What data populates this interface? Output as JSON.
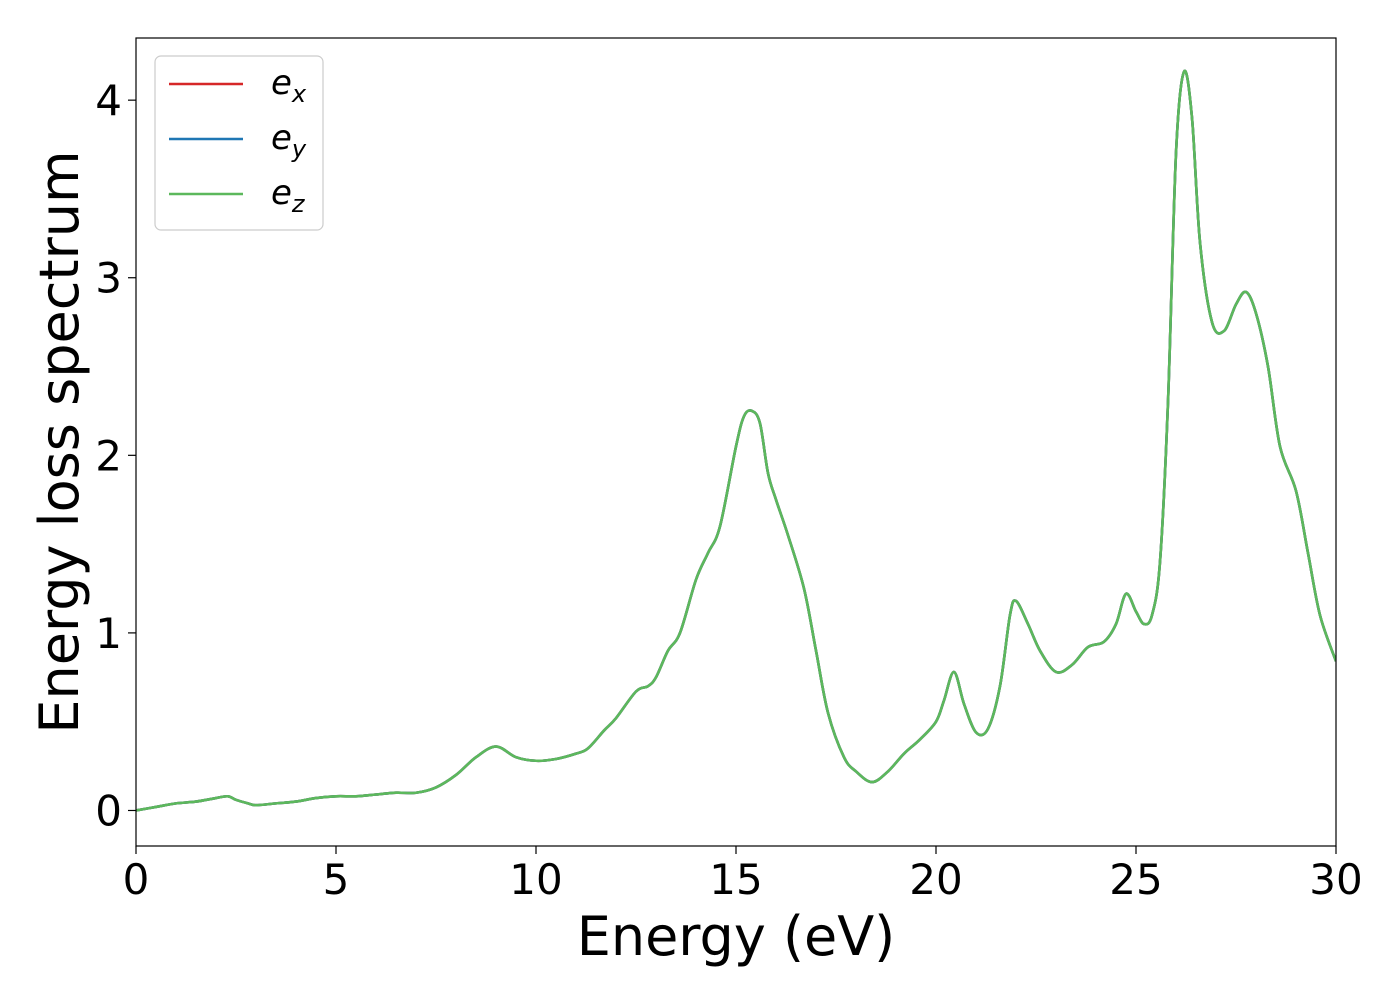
{
  "chart_data": {
    "type": "line",
    "xlabel": "Energy (eV)",
    "ylabel": "Energy loss spectrum",
    "xlim": [
      0,
      30
    ],
    "ylim": [
      -0.2,
      4.35
    ],
    "xticks": [
      0,
      5,
      10,
      15,
      20,
      25,
      30
    ],
    "yticks": [
      0,
      1,
      2,
      3,
      4
    ],
    "grid": false,
    "legend_position": "top-left",
    "legend": [
      {
        "base": "e",
        "sub": "x",
        "color": "#d62728"
      },
      {
        "base": "e",
        "sub": "y",
        "color": "#1f77b4"
      },
      {
        "base": "e",
        "sub": "z",
        "color": "#5cb85c"
      }
    ],
    "x": [
      0,
      0.5,
      1.0,
      1.5,
      2.0,
      2.3,
      2.5,
      2.8,
      3.0,
      3.5,
      4.0,
      4.5,
      5.0,
      5.5,
      6.0,
      6.5,
      7.0,
      7.5,
      8.0,
      8.5,
      9.0,
      9.5,
      10.0,
      10.5,
      11.0,
      11.3,
      11.7,
      12.0,
      12.5,
      12.8,
      13.0,
      13.3,
      13.6,
      14.0,
      14.3,
      14.6,
      15.0,
      15.2,
      15.4,
      15.6,
      15.8,
      16.0,
      16.3,
      16.7,
      17.0,
      17.3,
      17.7,
      18.0,
      18.4,
      18.8,
      19.2,
      19.6,
      20.0,
      20.2,
      20.45,
      20.7,
      21.0,
      21.3,
      21.6,
      21.85,
      22.0,
      22.3,
      22.6,
      23.0,
      23.4,
      23.8,
      24.2,
      24.5,
      24.75,
      25.0,
      25.2,
      25.4,
      25.6,
      25.8,
      26.0,
      26.2,
      26.4,
      26.6,
      26.9,
      27.2,
      27.5,
      27.75,
      28.0,
      28.3,
      28.6,
      29.0,
      29.3,
      29.6,
      30.0
    ],
    "series": [
      {
        "color": "#d62728",
        "values": [
          0.0,
          0.02,
          0.04,
          0.05,
          0.07,
          0.08,
          0.06,
          0.04,
          0.03,
          0.04,
          0.05,
          0.07,
          0.08,
          0.08,
          0.09,
          0.1,
          0.1,
          0.13,
          0.2,
          0.3,
          0.36,
          0.3,
          0.28,
          0.29,
          0.32,
          0.35,
          0.45,
          0.52,
          0.67,
          0.7,
          0.75,
          0.9,
          1.0,
          1.3,
          1.45,
          1.6,
          2.05,
          2.22,
          2.25,
          2.18,
          1.9,
          1.75,
          1.55,
          1.25,
          0.9,
          0.55,
          0.3,
          0.22,
          0.16,
          0.22,
          0.32,
          0.4,
          0.5,
          0.62,
          0.78,
          0.6,
          0.44,
          0.46,
          0.7,
          1.1,
          1.18,
          1.05,
          0.9,
          0.78,
          0.82,
          0.92,
          0.95,
          1.05,
          1.22,
          1.12,
          1.05,
          1.1,
          1.4,
          2.3,
          3.7,
          4.16,
          3.9,
          3.2,
          2.75,
          2.7,
          2.85,
          2.92,
          2.8,
          2.5,
          2.05,
          1.8,
          1.45,
          1.1,
          0.84
        ]
      },
      {
        "color": "#1f77b4",
        "values": [
          0.0,
          0.02,
          0.04,
          0.05,
          0.07,
          0.08,
          0.06,
          0.04,
          0.03,
          0.04,
          0.05,
          0.07,
          0.08,
          0.08,
          0.09,
          0.1,
          0.1,
          0.13,
          0.2,
          0.3,
          0.36,
          0.3,
          0.28,
          0.29,
          0.32,
          0.35,
          0.45,
          0.52,
          0.67,
          0.7,
          0.75,
          0.9,
          1.0,
          1.3,
          1.45,
          1.6,
          2.05,
          2.22,
          2.25,
          2.18,
          1.9,
          1.75,
          1.55,
          1.25,
          0.9,
          0.55,
          0.3,
          0.22,
          0.16,
          0.22,
          0.32,
          0.4,
          0.5,
          0.62,
          0.78,
          0.6,
          0.44,
          0.46,
          0.7,
          1.1,
          1.18,
          1.05,
          0.9,
          0.78,
          0.82,
          0.92,
          0.95,
          1.05,
          1.22,
          1.12,
          1.05,
          1.1,
          1.4,
          2.3,
          3.7,
          4.16,
          3.9,
          3.2,
          2.75,
          2.7,
          2.85,
          2.92,
          2.8,
          2.5,
          2.05,
          1.8,
          1.45,
          1.1,
          0.84
        ]
      },
      {
        "color": "#5cb85c",
        "values": [
          0.0,
          0.02,
          0.04,
          0.05,
          0.07,
          0.08,
          0.06,
          0.04,
          0.03,
          0.04,
          0.05,
          0.07,
          0.08,
          0.08,
          0.09,
          0.1,
          0.1,
          0.13,
          0.2,
          0.3,
          0.36,
          0.3,
          0.28,
          0.29,
          0.32,
          0.35,
          0.45,
          0.52,
          0.67,
          0.7,
          0.75,
          0.9,
          1.0,
          1.3,
          1.45,
          1.6,
          2.05,
          2.22,
          2.25,
          2.18,
          1.9,
          1.75,
          1.55,
          1.25,
          0.9,
          0.55,
          0.3,
          0.22,
          0.16,
          0.22,
          0.32,
          0.4,
          0.5,
          0.62,
          0.78,
          0.6,
          0.44,
          0.46,
          0.7,
          1.1,
          1.18,
          1.05,
          0.9,
          0.78,
          0.82,
          0.92,
          0.95,
          1.05,
          1.22,
          1.12,
          1.05,
          1.1,
          1.4,
          2.3,
          3.7,
          4.16,
          3.9,
          3.2,
          2.75,
          2.7,
          2.85,
          2.92,
          2.8,
          2.5,
          2.05,
          1.8,
          1.45,
          1.1,
          0.84
        ]
      }
    ]
  }
}
